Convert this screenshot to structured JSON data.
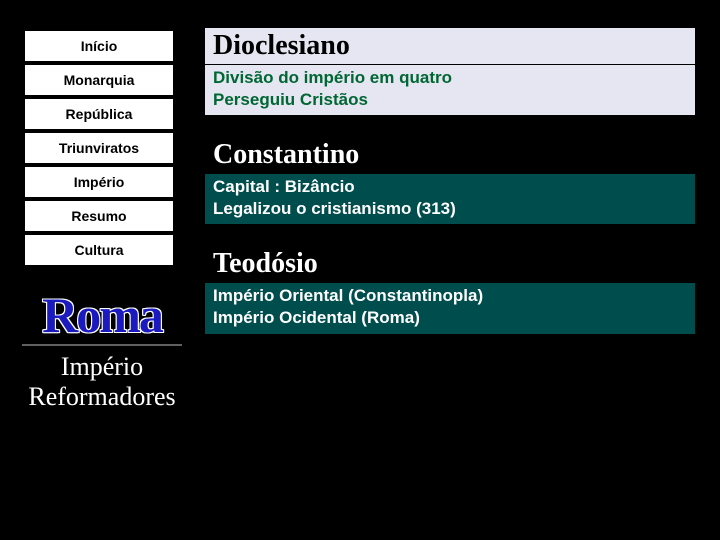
{
  "colors": {
    "page_bg": "#000000",
    "nav_bg": "#ffffff",
    "nav_fg": "#000000",
    "logo_color": "#1a1abf",
    "logo_outline": "#ffffff",
    "subtitle_color": "#ffffff",
    "section1_title_bg": "#e6e6f2",
    "section1_body_bg": "#e6e6f2",
    "section1_title_fg": "#000000",
    "section1_body_fg": "#006633",
    "section2_title_bg": "#000000",
    "section2_body_bg": "#004d4d",
    "section2_title_fg": "#ffffff",
    "section2_body_fg": "#ffffff",
    "section3_title_bg": "#000000",
    "section3_body_bg": "#004d4d",
    "section3_title_fg": "#ffffff",
    "section3_body_fg": "#ffffff"
  },
  "sidebar": {
    "items": [
      {
        "label": "Início"
      },
      {
        "label": "Monarquia"
      },
      {
        "label": "República"
      },
      {
        "label": "Triunviratos"
      },
      {
        "label": "Império"
      },
      {
        "label": "Resumo"
      },
      {
        "label": "Cultura"
      }
    ]
  },
  "logo": {
    "text": "Roma",
    "subtitle_line1": "Império",
    "subtitle_line2": "Reformadores"
  },
  "sections": [
    {
      "title": "Dioclesiano",
      "lines": [
        "Divisão do império em quatro",
        "Perseguiu Cristãos"
      ]
    },
    {
      "title": "Constantino",
      "lines": [
        "Capital : Bizâncio",
        "Legalizou o cristianismo (313)"
      ]
    },
    {
      "title": "Teodósio",
      "lines": [
        "Império Oriental (Constantinopla)",
        "Império Ocidental (Roma)"
      ]
    }
  ]
}
